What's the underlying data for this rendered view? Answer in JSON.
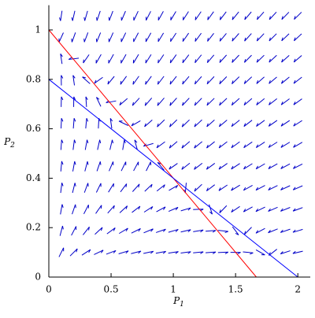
{
  "chart_data": {
    "type": "line",
    "x_label": {
      "text": "P",
      "subscript": "1"
    },
    "y_label": {
      "text": "P",
      "subscript": "2"
    },
    "xlim": [
      0,
      2.1
    ],
    "ylim": [
      0,
      1.1
    ],
    "xticks": [
      0,
      0.5,
      1,
      1.5,
      2
    ],
    "yticks": [
      0,
      0.2,
      0.4,
      0.6,
      0.8,
      1
    ],
    "series": [
      {
        "color": "#ff0000",
        "x": [
          0,
          1.667
        ],
        "values": [
          1,
          0
        ]
      },
      {
        "color": "#0000ff",
        "x": [
          0,
          2
        ],
        "values": [
          0.8,
          0
        ]
      }
    ],
    "field_color": "#0000c8"
  }
}
